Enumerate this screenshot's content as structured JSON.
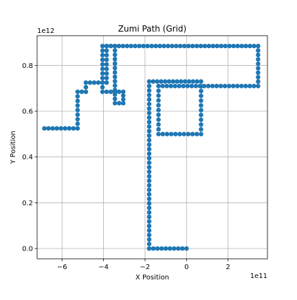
{
  "chart_data": {
    "type": "scatter",
    "title": "Zumi Path (Grid)",
    "xlabel": "X Position",
    "ylabel": "Y Position",
    "x_offset_label": "1e11",
    "y_offset_label": "1e12",
    "xlim": [
      -7.2,
      3.9
    ],
    "ylim": [
      -0.045,
      0.93
    ],
    "xticks": [
      -6,
      -4,
      -2,
      0,
      2
    ],
    "xtick_labels": [
      "−6",
      "−4",
      "−2",
      "0",
      "2"
    ],
    "yticks": [
      0.0,
      0.2,
      0.4,
      0.6,
      0.8
    ],
    "ytick_labels": [
      "0.0",
      "0.2",
      "0.4",
      "0.6",
      "0.8"
    ],
    "grid": true,
    "colors": {
      "marker": "#1f77b4",
      "grid": "#b0b0b0",
      "axes": "#000000"
    },
    "path_vertices": [
      [
        0.0,
        0.0
      ],
      [
        -1.8,
        0.0
      ],
      [
        -1.8,
        0.73
      ],
      [
        0.7,
        0.73
      ],
      [
        0.7,
        0.5
      ],
      [
        -1.35,
        0.5
      ],
      [
        -1.35,
        0.71
      ],
      [
        3.45,
        0.71
      ],
      [
        3.45,
        0.885
      ],
      [
        -4.05,
        0.885
      ],
      [
        -4.05,
        0.685
      ],
      [
        -3.05,
        0.685
      ],
      [
        -3.05,
        0.635
      ],
      [
        -3.45,
        0.635
      ],
      [
        -3.45,
        0.885
      ],
      [
        -3.85,
        0.885
      ],
      [
        -3.85,
        0.725
      ],
      [
        -4.85,
        0.725
      ],
      [
        -4.85,
        0.685
      ],
      [
        -5.25,
        0.685
      ],
      [
        -5.25,
        0.525
      ],
      [
        -6.85,
        0.525
      ]
    ],
    "point_spacing": 0.2
  }
}
